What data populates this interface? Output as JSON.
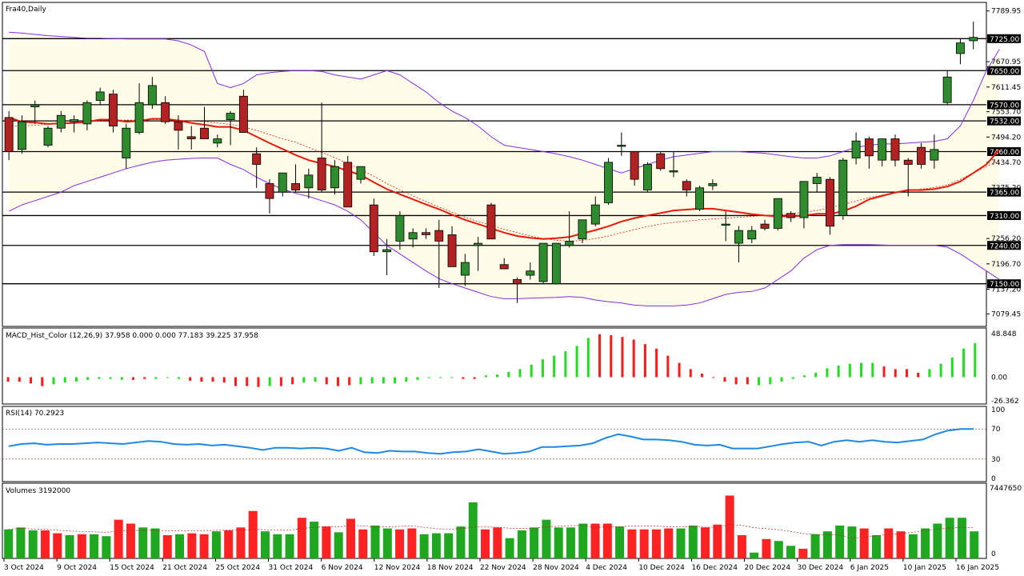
{
  "chart_data": [
    {
      "type": "candlestick",
      "title": "Fra40,Daily",
      "ylim": [
        7050,
        7810
      ],
      "y_ticks": [
        7789.95,
        7670.95,
        7611.45,
        7553.7,
        7494.2,
        7434.7,
        7256.2,
        7196.7,
        7137.2,
        7079.45
      ],
      "y_tick_partial": [
        "7375.20"
      ],
      "x_labels": [
        "3 Oct 2024",
        "9 Oct 2024",
        "15 Oct 2024",
        "21 Oct 2024",
        "25 Oct 2024",
        "31 Oct 2024",
        "6 Nov 2024",
        "12 Nov 2024",
        "18 Nov 2024",
        "22 Nov 2024",
        "28 Nov 2024",
        "4 Dec 2024",
        "10 Dec 2024",
        "16 Dec 2024",
        "20 Dec 2024",
        "30 Dec 2024",
        "6 Jan 2025",
        "10 Jan 2025",
        "16 Jan 2025"
      ],
      "horizontal_levels": [
        {
          "value": 7725.0,
          "label": "7725.00"
        },
        {
          "value": 7650.0,
          "label": "7650.00"
        },
        {
          "value": 7570.0,
          "label": "7570.00"
        },
        {
          "value": 7532.0,
          "label": "7532.00"
        },
        {
          "value": 7460.0,
          "label": "7460.00"
        },
        {
          "value": 7365.0,
          "label": "7365.00"
        },
        {
          "value": 7310.0,
          "label": "7310.00"
        },
        {
          "value": 7240.0,
          "label": "7240.00"
        },
        {
          "value": 7150.0,
          "label": "7150.00"
        }
      ],
      "candles": [
        {
          "o": 7540,
          "h": 7555,
          "l": 7440,
          "c": 7460
        },
        {
          "o": 7465,
          "h": 7545,
          "l": 7455,
          "c": 7530
        },
        {
          "o": 7565,
          "h": 7580,
          "l": 7525,
          "c": 7570
        },
        {
          "o": 7475,
          "h": 7520,
          "l": 7470,
          "c": 7515
        },
        {
          "o": 7515,
          "h": 7555,
          "l": 7505,
          "c": 7545
        },
        {
          "o": 7530,
          "h": 7545,
          "l": 7505,
          "c": 7535
        },
        {
          "o": 7525,
          "h": 7580,
          "l": 7510,
          "c": 7575
        },
        {
          "o": 7580,
          "h": 7610,
          "l": 7570,
          "c": 7600
        },
        {
          "o": 7595,
          "h": 7605,
          "l": 7505,
          "c": 7520
        },
        {
          "o": 7445,
          "h": 7525,
          "l": 7420,
          "c": 7515
        },
        {
          "o": 7505,
          "h": 7620,
          "l": 7500,
          "c": 7575
        },
        {
          "o": 7570,
          "h": 7635,
          "l": 7560,
          "c": 7615
        },
        {
          "o": 7575,
          "h": 7590,
          "l": 7525,
          "c": 7530
        },
        {
          "o": 7530,
          "h": 7545,
          "l": 7465,
          "c": 7510
        },
        {
          "o": 7495,
          "h": 7520,
          "l": 7465,
          "c": 7490
        },
        {
          "o": 7515,
          "h": 7565,
          "l": 7495,
          "c": 7490
        },
        {
          "o": 7480,
          "h": 7500,
          "l": 7470,
          "c": 7490
        },
        {
          "o": 7535,
          "h": 7555,
          "l": 7475,
          "c": 7550
        },
        {
          "o": 7590,
          "h": 7605,
          "l": 7505,
          "c": 7505
        },
        {
          "o": 7455,
          "h": 7470,
          "l": 7375,
          "c": 7430
        },
        {
          "o": 7385,
          "h": 7395,
          "l": 7315,
          "c": 7350
        },
        {
          "o": 7365,
          "h": 7405,
          "l": 7355,
          "c": 7410
        },
        {
          "o": 7385,
          "h": 7430,
          "l": 7365,
          "c": 7370
        },
        {
          "o": 7375,
          "h": 7420,
          "l": 7350,
          "c": 7405
        },
        {
          "o": 7445,
          "h": 7575,
          "l": 7365,
          "c": 7370
        },
        {
          "o": 7375,
          "h": 7440,
          "l": 7360,
          "c": 7425
        },
        {
          "o": 7435,
          "h": 7450,
          "l": 7335,
          "c": 7330
        },
        {
          "o": 7395,
          "h": 7425,
          "l": 7385,
          "c": 7425
        },
        {
          "o": 7335,
          "h": 7350,
          "l": 7215,
          "c": 7225
        },
        {
          "o": 7225,
          "h": 7255,
          "l": 7170,
          "c": 7230
        },
        {
          "o": 7250,
          "h": 7320,
          "l": 7230,
          "c": 7310
        },
        {
          "o": 7255,
          "h": 7280,
          "l": 7235,
          "c": 7270
        },
        {
          "o": 7270,
          "h": 7280,
          "l": 7255,
          "c": 7265
        },
        {
          "o": 7275,
          "h": 7300,
          "l": 7140,
          "c": 7250
        },
        {
          "o": 7265,
          "h": 7285,
          "l": 7195,
          "c": 7190
        },
        {
          "o": 7170,
          "h": 7220,
          "l": 7145,
          "c": 7200
        },
        {
          "o": 7240,
          "h": 7260,
          "l": 7180,
          "c": 7245
        },
        {
          "o": 7335,
          "h": 7340,
          "l": 7260,
          "c": 7255
        },
        {
          "o": 7195,
          "h": 7210,
          "l": 7185,
          "c": 7185
        },
        {
          "o": 7160,
          "h": 7165,
          "l": 7105,
          "c": 7150
        },
        {
          "o": 7170,
          "h": 7200,
          "l": 7160,
          "c": 7180
        },
        {
          "o": 7155,
          "h": 7245,
          "l": 7150,
          "c": 7245
        },
        {
          "o": 7150,
          "h": 7245,
          "l": 7150,
          "c": 7245
        },
        {
          "o": 7240,
          "h": 7320,
          "l": 7235,
          "c": 7250
        },
        {
          "o": 7255,
          "h": 7295,
          "l": 7245,
          "c": 7300
        },
        {
          "o": 7290,
          "h": 7355,
          "l": 7285,
          "c": 7335
        },
        {
          "o": 7340,
          "h": 7445,
          "l": 7335,
          "c": 7435
        },
        {
          "o": 7475,
          "h": 7505,
          "l": 7450,
          "c": 7475
        },
        {
          "o": 7460,
          "h": 7460,
          "l": 7380,
          "c": 7395
        },
        {
          "o": 7370,
          "h": 7435,
          "l": 7365,
          "c": 7430
        },
        {
          "o": 7455,
          "h": 7460,
          "l": 7415,
          "c": 7420
        },
        {
          "o": 7415,
          "h": 7460,
          "l": 7400,
          "c": 7415
        },
        {
          "o": 7390,
          "h": 7395,
          "l": 7355,
          "c": 7370
        },
        {
          "o": 7325,
          "h": 7380,
          "l": 7320,
          "c": 7375
        },
        {
          "o": 7380,
          "h": 7395,
          "l": 7370,
          "c": 7385
        },
        {
          "o": 7290,
          "h": 7320,
          "l": 7250,
          "c": 7290
        },
        {
          "o": 7245,
          "h": 7285,
          "l": 7200,
          "c": 7275
        },
        {
          "o": 7255,
          "h": 7285,
          "l": 7245,
          "c": 7275
        },
        {
          "o": 7290,
          "h": 7300,
          "l": 7275,
          "c": 7280
        },
        {
          "o": 7280,
          "h": 7350,
          "l": 7275,
          "c": 7350
        },
        {
          "o": 7315,
          "h": 7320,
          "l": 7295,
          "c": 7305
        },
        {
          "o": 7305,
          "h": 7390,
          "l": 7280,
          "c": 7390
        },
        {
          "o": 7385,
          "h": 7410,
          "l": 7365,
          "c": 7400
        },
        {
          "o": 7395,
          "h": 7400,
          "l": 7265,
          "c": 7285
        },
        {
          "o": 7310,
          "h": 7445,
          "l": 7300,
          "c": 7440
        },
        {
          "o": 7445,
          "h": 7505,
          "l": 7430,
          "c": 7485
        },
        {
          "o": 7490,
          "h": 7495,
          "l": 7420,
          "c": 7450
        },
        {
          "o": 7440,
          "h": 7490,
          "l": 7425,
          "c": 7490
        },
        {
          "o": 7490,
          "h": 7500,
          "l": 7425,
          "c": 7440
        },
        {
          "o": 7440,
          "h": 7445,
          "l": 7355,
          "c": 7430
        },
        {
          "o": 7470,
          "h": 7480,
          "l": 7420,
          "c": 7430
        },
        {
          "o": 7440,
          "h": 7500,
          "l": 7420,
          "c": 7465
        },
        {
          "o": 7575,
          "h": 7650,
          "l": 7570,
          "c": 7635
        },
        {
          "o": 7690,
          "h": 7725,
          "l": 7665,
          "c": 7715
        },
        {
          "o": 7720,
          "h": 7765,
          "l": 7700,
          "c": 7728
        }
      ],
      "ma_red": [
        7540,
        7530,
        7528,
        7525,
        7526,
        7527,
        7530,
        7535,
        7535,
        7530,
        7532,
        7537,
        7537,
        7533,
        7527,
        7523,
        7518,
        7518,
        7510,
        7495,
        7480,
        7466,
        7452,
        7440,
        7432,
        7425,
        7415,
        7405,
        7388,
        7372,
        7360,
        7348,
        7336,
        7325,
        7312,
        7300,
        7290,
        7280,
        7270,
        7262,
        7258,
        7255,
        7257,
        7260,
        7268,
        7276,
        7285,
        7296,
        7304,
        7310,
        7316,
        7322,
        7324,
        7326,
        7326,
        7322,
        7318,
        7313,
        7310,
        7308,
        7308,
        7310,
        7314,
        7314,
        7320,
        7332,
        7348,
        7356,
        7364,
        7370,
        7370,
        7372,
        7378,
        7390,
        7410,
        7430,
        7465
      ],
      "ma_dashed": [
        7520,
        7520,
        7522,
        7524,
        7526,
        7528,
        7530,
        7532,
        7534,
        7534,
        7534,
        7535,
        7535,
        7534,
        7532,
        7530,
        7527,
        7524,
        7518,
        7510,
        7500,
        7490,
        7482,
        7470,
        7458,
        7446,
        7432,
        7418,
        7402,
        7385,
        7370,
        7356,
        7343,
        7330,
        7318,
        7306,
        7296,
        7287,
        7278,
        7270,
        7262,
        7256,
        7252,
        7250,
        7252,
        7256,
        7262,
        7270,
        7277,
        7284,
        7290,
        7294,
        7297,
        7300,
        7302,
        7304,
        7306,
        7308,
        7310,
        7312,
        7314,
        7318,
        7322,
        7328,
        7336,
        7344,
        7352,
        7358,
        7364,
        7368,
        7372,
        7376,
        7382,
        7395,
        7410,
        7425,
        7440
      ],
      "bb_upper": [
        7740,
        7738,
        7735,
        7732,
        7730,
        7728,
        7726,
        7726,
        7725,
        7724,
        7724,
        7724,
        7724,
        7720,
        7710,
        7695,
        7620,
        7610,
        7620,
        7640,
        7645,
        7648,
        7650,
        7650,
        7648,
        7640,
        7635,
        7630,
        7640,
        7650,
        7640,
        7620,
        7600,
        7575,
        7555,
        7540,
        7520,
        7495,
        7475,
        7470,
        7465,
        7460,
        7455,
        7448,
        7440,
        7430,
        7420,
        7410,
        7420,
        7430,
        7440,
        7448,
        7452,
        7456,
        7460,
        7460,
        7460,
        7458,
        7456,
        7452,
        7448,
        7445,
        7445,
        7450,
        7460,
        7470,
        7475,
        7478,
        7478,
        7480,
        7482,
        7484,
        7490,
        7520,
        7580,
        7650,
        7700
      ],
      "bb_lower": [
        7320,
        7335,
        7345,
        7355,
        7365,
        7380,
        7390,
        7400,
        7410,
        7420,
        7428,
        7435,
        7440,
        7442,
        7444,
        7445,
        7445,
        7430,
        7418,
        7400,
        7385,
        7372,
        7362,
        7355,
        7345,
        7335,
        7320,
        7300,
        7270,
        7240,
        7220,
        7200,
        7180,
        7162,
        7150,
        7140,
        7130,
        7120,
        7115,
        7115,
        7116,
        7117,
        7118,
        7120,
        7118,
        7112,
        7108,
        7105,
        7100,
        7098,
        7098,
        7098,
        7100,
        7105,
        7115,
        7125,
        7130,
        7132,
        7140,
        7160,
        7180,
        7210,
        7230,
        7240,
        7242,
        7242,
        7242,
        7241,
        7240,
        7240,
        7240,
        7240,
        7236,
        7220,
        7200,
        7180,
        7160
      ],
      "macd_label": "MACD_Hist_Color (12,26,9)  37.958 0.000 0.000 77.183 39.225 37.958",
      "macd_ticks": [
        "48.848",
        "0.00",
        "-26.362"
      ],
      "macd_range": [
        -30,
        55
      ],
      "macd": [
        -5,
        -5,
        -7,
        -10,
        -8,
        -6,
        -5,
        -3,
        -2,
        -2,
        -3,
        -3,
        -2,
        -2,
        0,
        -2,
        -4,
        -5,
        -5,
        -6,
        -10,
        -10,
        -11,
        -10,
        -10,
        -8,
        -6,
        -5,
        -8,
        -10,
        -9,
        -8,
        -7,
        -7,
        -7,
        -5,
        -3,
        -1,
        0,
        0,
        -2,
        -2,
        2,
        3,
        6,
        9,
        14,
        20,
        24,
        29,
        35,
        44,
        48,
        47,
        45,
        42,
        37,
        32,
        24,
        16,
        9,
        4,
        0,
        -5,
        -8,
        -8,
        -9,
        -8,
        -5,
        -2,
        2,
        5,
        10,
        13,
        15,
        16,
        16,
        12,
        9,
        9,
        5,
        9,
        15,
        22,
        32,
        38
      ],
      "macd_color": [
        "r",
        "r",
        "r",
        "r",
        "g",
        "g",
        "g",
        "g",
        "g",
        "g",
        "g",
        "r",
        "r",
        "g",
        "g",
        "g",
        "r",
        "r",
        "r",
        "r",
        "r",
        "r",
        "r",
        "g",
        "r",
        "r",
        "g",
        "g",
        "r",
        "r",
        "r",
        "g",
        "g",
        "g",
        "g",
        "g",
        "g",
        "g",
        "g",
        "g",
        "r",
        "r",
        "g",
        "g",
        "g",
        "g",
        "g",
        "g",
        "g",
        "g",
        "g",
        "g",
        "r",
        "r",
        "r",
        "r",
        "r",
        "r",
        "r",
        "r",
        "r",
        "r",
        "r",
        "r",
        "r",
        "r",
        "g",
        "g",
        "g",
        "g",
        "g",
        "g",
        "g",
        "g",
        "g",
        "g",
        "g",
        "r",
        "r",
        "r",
        "r",
        "g",
        "g",
        "g",
        "g",
        "g"
      ],
      "rsi_label": "RSI(14) 70.2923",
      "rsi_ticks": [
        "100",
        "70",
        "30",
        "0"
      ],
      "rsi_levels": [
        70,
        30
      ],
      "rsi": [
        47,
        50,
        51,
        49,
        50,
        50,
        51,
        52,
        51,
        50,
        52,
        54,
        53,
        50,
        49,
        50,
        48,
        49,
        47,
        45,
        42,
        45,
        45,
        44,
        45,
        44,
        41,
        45,
        39,
        38,
        41,
        40,
        40,
        38,
        37,
        39,
        40,
        43,
        40,
        37,
        38,
        40,
        46,
        46,
        47,
        48,
        51,
        58,
        63,
        60,
        56,
        56,
        55,
        53,
        49,
        48,
        49,
        44,
        44,
        44,
        47,
        50,
        52,
        53,
        48,
        53,
        55,
        53,
        55,
        53,
        52,
        54,
        56,
        63,
        68,
        70,
        70
      ],
      "volume_label": "Volumes 3192000",
      "volume_ticks": [
        "7447650",
        "0"
      ],
      "volume_max": 7447650,
      "volumes": [
        3.0,
        3.2,
        2.9,
        2.9,
        2.6,
        2.4,
        2.5,
        2.5,
        2.3,
        4.0,
        3.6,
        3.2,
        3.1,
        2.4,
        2.5,
        2.6,
        2.5,
        2.8,
        2.9,
        3.2,
        4.9,
        2.8,
        2.5,
        2.5,
        4.2,
        3.8,
        3.3,
        2.7,
        4.1,
        3.0,
        3.4,
        3.1,
        3.0,
        3.1,
        2.5,
        2.6,
        2.6,
        3.3,
        5.8,
        3.0,
        3.2,
        2.1,
        2.9,
        3.2,
        4.0,
        3.2,
        3.2,
        3.6,
        3.6,
        3.6,
        3.3,
        3.0,
        3.0,
        3.0,
        3.1,
        3.1,
        3.4,
        3.2,
        3.5,
        6.5,
        2.4,
        0.6,
        2.0,
        1.8,
        1.3,
        1.0,
        2.5,
        2.8,
        3.4,
        3.3,
        3.1,
        2.4,
        3.1,
        2.8,
        2.5,
        3.1,
        3.6,
        4.2,
        4.2,
        2.8
      ],
      "volume_color": [
        "g",
        "g",
        "g",
        "r",
        "r",
        "g",
        "r",
        "g",
        "g",
        "r",
        "r",
        "g",
        "g",
        "r",
        "g",
        "r",
        "r",
        "g",
        "r",
        "r",
        "r",
        "g",
        "g",
        "g",
        "r",
        "g",
        "r",
        "g",
        "r",
        "r",
        "g",
        "g",
        "r",
        "r",
        "g",
        "g",
        "g",
        "g",
        "g",
        "r",
        "r",
        "g",
        "g",
        "g",
        "g",
        "g",
        "g",
        "g",
        "r",
        "r",
        "g",
        "r",
        "r",
        "r",
        "r",
        "g",
        "g",
        "r",
        "r",
        "r",
        "r",
        "g",
        "r",
        "g",
        "g",
        "r",
        "g",
        "g",
        "g",
        "g",
        "r",
        "g",
        "r",
        "r",
        "g",
        "g",
        "g",
        "g",
        "g",
        "g"
      ],
      "colors": {
        "up": "#2e8b2e",
        "down": "#b22222",
        "ma_red": "#e8190b",
        "bb": "#8a2be2",
        "band_fill": "#fffde8",
        "level": "#000000",
        "macd_up": "#22dd22",
        "macd_down": "#ff1a1a",
        "rsi": "#1e88e5",
        "vol_up": "#1fa71f",
        "vol_down": "#ff2222"
      }
    }
  ]
}
